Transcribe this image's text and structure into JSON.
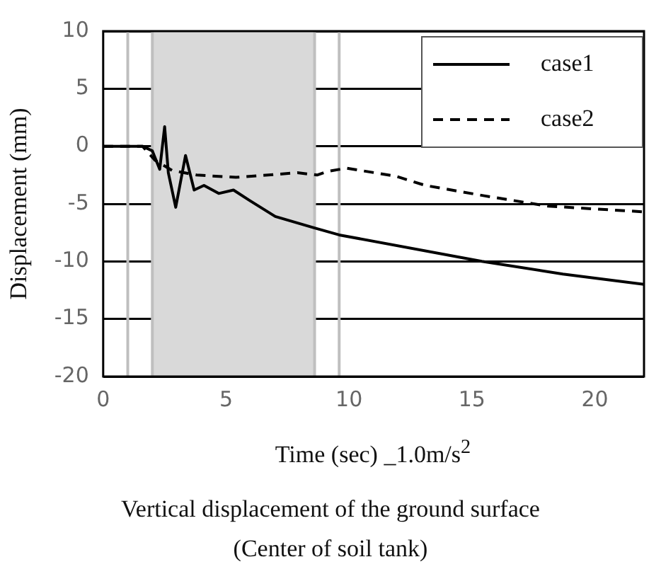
{
  "chart_data": {
    "type": "line",
    "title": "Vertical displacement of the ground surface\n(Center of soil tank)",
    "xlabel": "Time (sec) _1.0m/s$^{2}$",
    "ylabel": "Displacement (mm)",
    "xlim": [
      0,
      22
    ],
    "xticks": [
      0,
      5,
      10,
      15,
      20
    ],
    "ylim": [
      -20,
      10
    ],
    "yticks": [
      -20,
      -15,
      -10,
      -5,
      0,
      5,
      10
    ],
    "grid": "y",
    "legend": "top right",
    "marker": "none",
    "bands": [
      {
        "axis": "x",
        "from": 2,
        "to": 8.6,
        "color": "#d9d9d9"
      }
    ],
    "ref_lines": [
      {
        "axis": "x",
        "value": 1,
        "color": "#bfbfbf"
      },
      {
        "axis": "x",
        "value": 2,
        "color": "#bfbfbf"
      },
      {
        "axis": "x",
        "value": 8.6,
        "color": "#bfbfbf"
      },
      {
        "axis": "x",
        "value": 9.6,
        "color": "#bfbfbf"
      }
    ],
    "series": [
      {
        "name": "case1",
        "color": "#000000",
        "line_style": "solid",
        "x": [
          0,
          1.6,
          2.0,
          2.3,
          2.5,
          2.65,
          2.95,
          3.35,
          3.7,
          4.1,
          4.7,
          5.3,
          5.95,
          7.0,
          8.6,
          9.6,
          15.4,
          18.7,
          22
        ],
        "values": [
          0,
          0,
          -0.4,
          -2.0,
          1.7,
          -2.3,
          -5.3,
          -0.8,
          -3.8,
          -3.4,
          -4.1,
          -3.8,
          -4.7,
          -6.1,
          -7.1,
          -7.7,
          -10.0,
          -11.1,
          -12.0
        ]
      },
      {
        "name": "case2",
        "color": "#000000",
        "line_style": "dashed",
        "x": [
          0,
          1.6,
          2.1,
          2.8,
          3.8,
          5.4,
          7.9,
          8.7,
          9.1,
          9.9,
          11.9,
          13.1,
          15.5,
          18.1,
          22
        ],
        "values": [
          0,
          0,
          -1.2,
          -2.1,
          -2.5,
          -2.7,
          -2.3,
          -2.5,
          -2.2,
          -1.9,
          -2.6,
          -3.4,
          -4.3,
          -5.2,
          -5.7
        ]
      }
    ]
  }
}
